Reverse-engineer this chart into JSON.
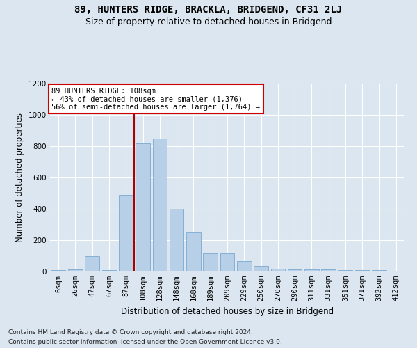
{
  "title": "89, HUNTERS RIDGE, BRACKLA, BRIDGEND, CF31 2LJ",
  "subtitle": "Size of property relative to detached houses in Bridgend",
  "xlabel": "Distribution of detached houses by size in Bridgend",
  "ylabel": "Number of detached properties",
  "categories": [
    "6sqm",
    "26sqm",
    "47sqm",
    "67sqm",
    "87sqm",
    "108sqm",
    "128sqm",
    "148sqm",
    "168sqm",
    "189sqm",
    "209sqm",
    "229sqm",
    "250sqm",
    "270sqm",
    "290sqm",
    "311sqm",
    "331sqm",
    "351sqm",
    "371sqm",
    "392sqm",
    "412sqm"
  ],
  "values": [
    10,
    15,
    100,
    10,
    490,
    820,
    850,
    400,
    250,
    115,
    115,
    65,
    35,
    20,
    15,
    15,
    15,
    10,
    10,
    10,
    5
  ],
  "bar_color": "#b8cfe8",
  "bar_edge_color": "#7aaad0",
  "highlight_index": 5,
  "vline_color": "#aa0000",
  "annotation_text": "89 HUNTERS RIDGE: 108sqm\n← 43% of detached houses are smaller (1,376)\n56% of semi-detached houses are larger (1,764) →",
  "annotation_box_color": "#cc0000",
  "ylim": [
    0,
    1200
  ],
  "yticks": [
    0,
    200,
    400,
    600,
    800,
    1000,
    1200
  ],
  "background_color": "#dce6f0",
  "plot_bg_color": "#dce6f0",
  "footer_line1": "Contains HM Land Registry data © Crown copyright and database right 2024.",
  "footer_line2": "Contains public sector information licensed under the Open Government Licence v3.0.",
  "title_fontsize": 10,
  "subtitle_fontsize": 9,
  "xlabel_fontsize": 8.5,
  "ylabel_fontsize": 8.5,
  "tick_fontsize": 7.5,
  "footer_fontsize": 6.5,
  "annotation_fontsize": 7.5
}
